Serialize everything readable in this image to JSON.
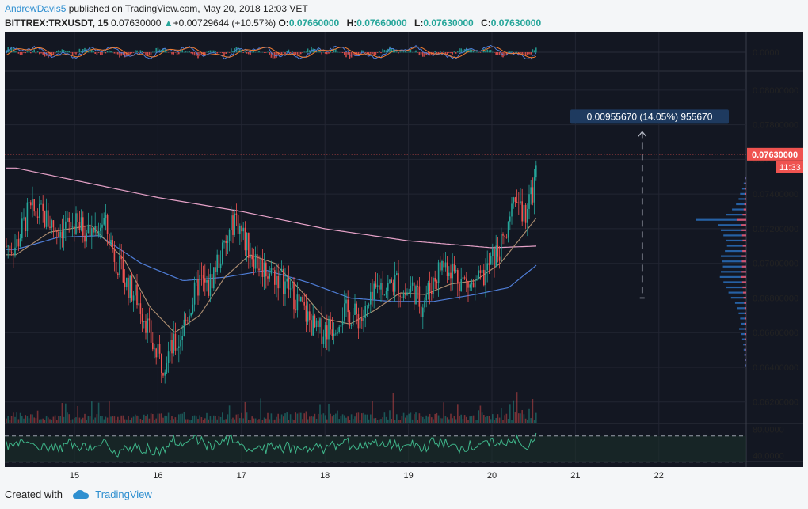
{
  "header": {
    "author": "AndrewDavis5",
    "published_text": "published on TradingView.com, May 20, 2018 12:03 VET",
    "symbol": "BITTREX:TRXUSDT, 15",
    "last": "0.07630000",
    "change_arrow": "▲",
    "change": "+0.00729644 (+10.57%)",
    "ohlc": [
      {
        "label": "O:",
        "value": "0.07660000"
      },
      {
        "label": "H:",
        "value": "0.07660000"
      },
      {
        "label": "L:",
        "value": "0.07630000"
      },
      {
        "label": "C:",
        "value": "0.07630000"
      }
    ]
  },
  "footer": {
    "created_with": "Created with",
    "brand": "TradingView",
    "logo_icon": "tradingview-cloud-icon"
  },
  "colors": {
    "background": "#131722",
    "grid": "#232633",
    "up": "#26a69a",
    "down": "#ef5350",
    "ma_long": "#e6a2c8",
    "ma_mid": "#4f7ed8",
    "ma_short": "#a88a6e",
    "rsi": "#3fb68a",
    "price_line": "#ef5350",
    "label_bg": "#1e3a5f"
  },
  "chart_data": {
    "type": "candlestick",
    "symbol": "BITTREX:TRXUSDT",
    "interval": "15",
    "x_ticks": [
      "15",
      "16",
      "17",
      "18",
      "19",
      "20",
      "21",
      "22"
    ],
    "price_axis": {
      "ticks": [
        "0.08000000",
        "0.07800000",
        "0.07600000",
        "0.07400000",
        "0.07200000",
        "0.07000000",
        "0.06800000",
        "0.06600000",
        "0.06400000",
        "0.06200000"
      ],
      "range": [
        0.0608,
        0.081
      ]
    },
    "last_price_label": "0.07630000",
    "countdown_label": "11:33",
    "measure_label": "0.00955670 (14.05%) 955670",
    "macd_axis_label": "0.0000",
    "rsi_axis": {
      "ticks": [
        "80.0000",
        "40.0000"
      ],
      "range": [
        32,
        88
      ],
      "levels": [
        70,
        30
      ]
    },
    "price_path": [
      [
        14.3,
        0.071
      ],
      [
        14.45,
        0.073
      ],
      [
        14.6,
        0.0728
      ],
      [
        14.8,
        0.072
      ],
      [
        15.0,
        0.0722
      ],
      [
        15.2,
        0.0718
      ],
      [
        15.35,
        0.0725
      ],
      [
        15.5,
        0.0702
      ],
      [
        15.6,
        0.069
      ],
      [
        15.75,
        0.068
      ],
      [
        15.85,
        0.0668
      ],
      [
        15.95,
        0.065
      ],
      [
        16.05,
        0.0642
      ],
      [
        16.15,
        0.065
      ],
      [
        16.25,
        0.0655
      ],
      [
        16.35,
        0.067
      ],
      [
        16.5,
        0.069
      ],
      [
        16.6,
        0.0685
      ],
      [
        16.7,
        0.07
      ],
      [
        16.82,
        0.071
      ],
      [
        16.92,
        0.0728
      ],
      [
        17.05,
        0.0712
      ],
      [
        17.2,
        0.07
      ],
      [
        17.35,
        0.0695
      ],
      [
        17.5,
        0.069
      ],
      [
        17.65,
        0.068
      ],
      [
        17.8,
        0.0668
      ],
      [
        17.9,
        0.066
      ],
      [
        18.0,
        0.0662
      ],
      [
        18.1,
        0.0664
      ],
      [
        18.2,
        0.0672
      ],
      [
        18.35,
        0.067
      ],
      [
        18.45,
        0.0668
      ],
      [
        18.55,
        0.0676
      ],
      [
        18.65,
        0.0688
      ],
      [
        18.75,
        0.0686
      ],
      [
        18.85,
        0.069
      ],
      [
        18.95,
        0.0682
      ],
      [
        19.05,
        0.0686
      ],
      [
        19.15,
        0.0676
      ],
      [
        19.3,
        0.069
      ],
      [
        19.4,
        0.07
      ],
      [
        19.5,
        0.0698
      ],
      [
        19.6,
        0.0692
      ],
      [
        19.7,
        0.0688
      ],
      [
        19.8,
        0.0686
      ],
      [
        19.9,
        0.0692
      ],
      [
        20.0,
        0.0702
      ],
      [
        20.1,
        0.0708
      ],
      [
        20.2,
        0.0718
      ],
      [
        20.25,
        0.0732
      ],
      [
        20.32,
        0.0738
      ],
      [
        20.4,
        0.0724
      ],
      [
        20.47,
        0.0738
      ],
      [
        20.52,
        0.075
      ],
      [
        20.56,
        0.0763
      ]
    ],
    "ma_long": [
      [
        14.3,
        0.0755
      ],
      [
        15.0,
        0.0748
      ],
      [
        16.0,
        0.0738
      ],
      [
        17.0,
        0.073
      ],
      [
        18.0,
        0.072
      ],
      [
        19.0,
        0.0713
      ],
      [
        20.0,
        0.0709
      ],
      [
        20.56,
        0.071
      ]
    ],
    "ma_mid": [
      [
        14.3,
        0.0708
      ],
      [
        14.8,
        0.0715
      ],
      [
        15.3,
        0.0716
      ],
      [
        15.8,
        0.07
      ],
      [
        16.3,
        0.069
      ],
      [
        16.8,
        0.0692
      ],
      [
        17.3,
        0.0696
      ],
      [
        17.8,
        0.0689
      ],
      [
        18.3,
        0.068
      ],
      [
        18.8,
        0.0678
      ],
      [
        19.3,
        0.0678
      ],
      [
        19.8,
        0.0682
      ],
      [
        20.2,
        0.0686
      ],
      [
        20.56,
        0.07
      ]
    ],
    "ma_short": [
      [
        14.3,
        0.0705
      ],
      [
        14.7,
        0.0718
      ],
      [
        15.2,
        0.0722
      ],
      [
        15.6,
        0.0702
      ],
      [
        15.9,
        0.0675
      ],
      [
        16.2,
        0.066
      ],
      [
        16.5,
        0.067
      ],
      [
        16.8,
        0.0692
      ],
      [
        17.1,
        0.0705
      ],
      [
        17.4,
        0.07
      ],
      [
        17.7,
        0.0685
      ],
      [
        18.0,
        0.0668
      ],
      [
        18.3,
        0.0665
      ],
      [
        18.6,
        0.0673
      ],
      [
        18.9,
        0.0683
      ],
      [
        19.2,
        0.0682
      ],
      [
        19.5,
        0.0688
      ],
      [
        19.8,
        0.069
      ],
      [
        20.1,
        0.07
      ],
      [
        20.35,
        0.0715
      ],
      [
        20.56,
        0.0728
      ]
    ],
    "measure": {
      "x": 21.8,
      "from": 0.068,
      "to": 0.0776
    },
    "volume_profile": [
      [
        0.0749,
        0.03
      ],
      [
        0.0746,
        0.05
      ],
      [
        0.0743,
        0.08
      ],
      [
        0.074,
        0.12
      ],
      [
        0.0737,
        0.15
      ],
      [
        0.0734,
        0.2
      ],
      [
        0.0731,
        0.28
      ],
      [
        0.0728,
        0.4
      ],
      [
        0.0725,
        1.0
      ],
      [
        0.0722,
        0.55
      ],
      [
        0.0719,
        0.5
      ],
      [
        0.0716,
        0.45
      ],
      [
        0.0713,
        0.4
      ],
      [
        0.071,
        0.38
      ],
      [
        0.0707,
        0.42
      ],
      [
        0.0704,
        0.5
      ],
      [
        0.0701,
        0.48
      ],
      [
        0.0698,
        0.46
      ],
      [
        0.0695,
        0.5
      ],
      [
        0.0692,
        0.52
      ],
      [
        0.0689,
        0.45
      ],
      [
        0.0686,
        0.4
      ],
      [
        0.0683,
        0.35
      ],
      [
        0.068,
        0.3
      ],
      [
        0.0677,
        0.22
      ],
      [
        0.0674,
        0.18
      ],
      [
        0.0671,
        0.15
      ],
      [
        0.0668,
        0.12
      ],
      [
        0.0665,
        0.1
      ],
      [
        0.0662,
        0.14
      ],
      [
        0.0659,
        0.1
      ],
      [
        0.0656,
        0.08
      ],
      [
        0.0653,
        0.06
      ],
      [
        0.065,
        0.05
      ],
      [
        0.0647,
        0.04
      ],
      [
        0.0644,
        0.03
      ],
      [
        0.0641,
        0.02
      ]
    ]
  }
}
